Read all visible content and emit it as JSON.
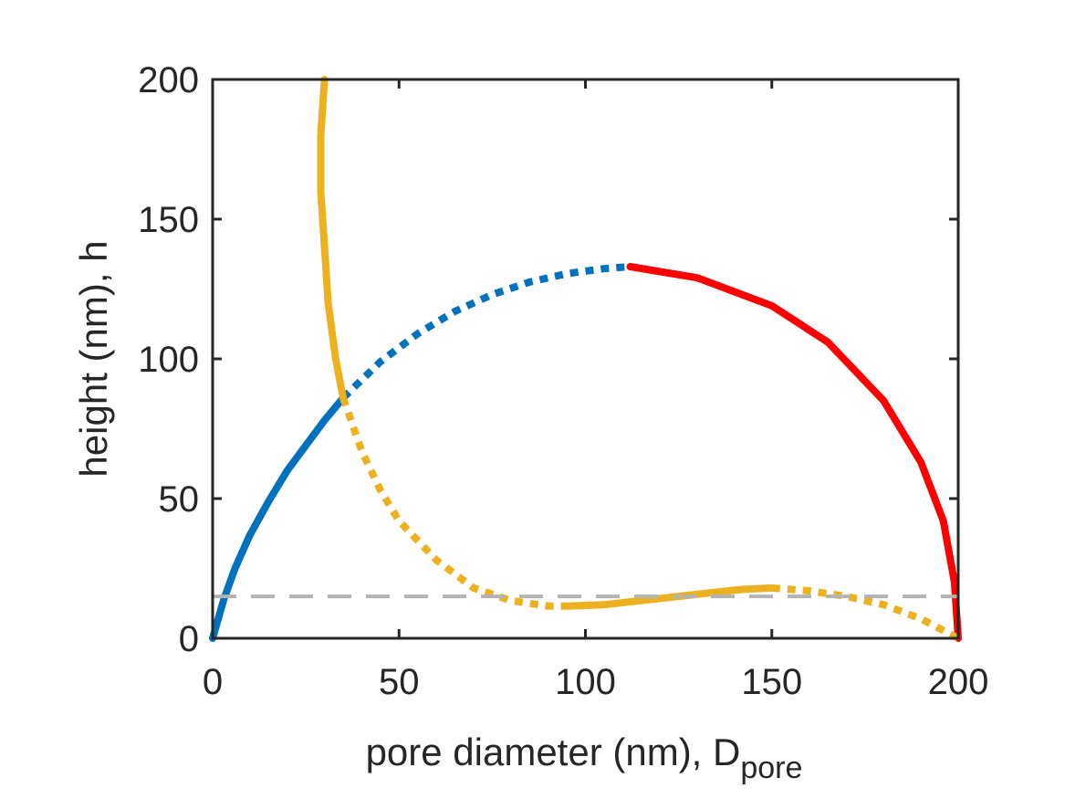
{
  "chart_data": {
    "type": "line",
    "title": "",
    "xlabel": "pore diameter (nm), D",
    "xlabel_subscript": "pore",
    "ylabel": "height (nm), h",
    "xlim": [
      0,
      200
    ],
    "ylim": [
      0,
      200
    ],
    "xticks": [
      "0",
      "50",
      "100",
      "150",
      "200"
    ],
    "yticks": [
      "0",
      "50",
      "100",
      "150",
      "200"
    ],
    "grid": false,
    "legend": "none",
    "series": [
      {
        "color": "#0072BD",
        "style": "solid",
        "x": [
          0,
          3,
          6,
          10,
          15,
          20,
          25,
          30,
          35
        ],
        "y": [
          0,
          14,
          25,
          37,
          49,
          60,
          69,
          78,
          86
        ]
      },
      {
        "color": "#0072BD",
        "style": "dotted",
        "x": [
          35,
          45,
          55,
          65,
          75,
          85,
          95,
          105,
          112
        ],
        "y": [
          86,
          99,
          109,
          117,
          123,
          127.5,
          130.5,
          132.3,
          133
        ]
      },
      {
        "color": "#FF0000",
        "style": "solid",
        "x": [
          112,
          130,
          150,
          165,
          180,
          190,
          196,
          199,
          200
        ],
        "y": [
          133,
          129,
          119,
          106,
          85,
          63,
          42,
          20,
          0
        ]
      },
      {
        "color": "#EDB120",
        "style": "solid",
        "x": [
          30,
          29,
          29,
          30,
          31,
          33,
          35
        ],
        "y": [
          200,
          180,
          160,
          140,
          120,
          100,
          86
        ]
      },
      {
        "color": "#EDB120",
        "style": "dotted",
        "x": [
          35,
          40,
          45,
          50,
          60,
          70,
          80,
          90,
          95
        ],
        "y": [
          86,
          67,
          53,
          42,
          28,
          18,
          13.5,
          11.5,
          11.5
        ]
      },
      {
        "color": "#EDB120",
        "style": "solid",
        "x": [
          95,
          105,
          115,
          125,
          135,
          142,
          150
        ],
        "y": [
          11.5,
          12,
          13.5,
          15,
          16.5,
          17.5,
          18
        ]
      },
      {
        "color": "#EDB120",
        "style": "dotted",
        "x": [
          150,
          160,
          170,
          180,
          190,
          200
        ],
        "y": [
          18,
          17,
          15,
          12,
          7,
          0
        ]
      },
      {
        "color": "#B3B3B3",
        "style": "dashed",
        "x": [
          0,
          200
        ],
        "y": [
          15,
          15
        ]
      }
    ]
  }
}
